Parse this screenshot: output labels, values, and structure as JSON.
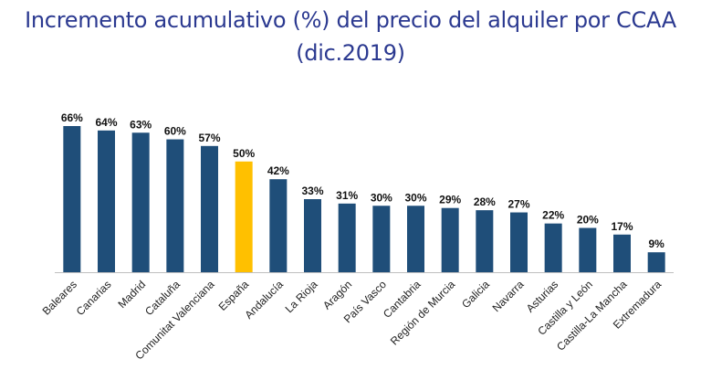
{
  "chart_data": {
    "type": "bar",
    "title_lines": [
      "Incremento acumulativo (%) del precio del alquiler por CCAA",
      "(dic.2019)"
    ],
    "categories": [
      "Baleares",
      "Canarias",
      "Madrid",
      "Cataluña",
      "Comunitat Valenciana",
      "España",
      "Andalucía",
      "La Rioja",
      "Aragón",
      "País Vasco",
      "Cantabria",
      "Región de Murcia",
      "Galicia",
      "Navarra",
      "Asturias",
      "Castilla y León",
      "Castilla-La Mancha",
      "Extremadura"
    ],
    "values": [
      66,
      64,
      63,
      60,
      57,
      50,
      42,
      33,
      31,
      30,
      30,
      29,
      28,
      27,
      22,
      20,
      17,
      9
    ],
    "data_labels": [
      "66%",
      "64%",
      "63%",
      "60%",
      "57%",
      "50%",
      "42%",
      "33%",
      "31%",
      "30%",
      "30%",
      "29%",
      "28%",
      "27%",
      "22%",
      "20%",
      "17%",
      "9%"
    ],
    "highlight_category": "España",
    "colors": {
      "bar": "#1f4e79",
      "highlight": "#ffc000",
      "title": "#2b3990"
    },
    "ylim": [
      0,
      66
    ],
    "grid": false,
    "legend": "none"
  }
}
